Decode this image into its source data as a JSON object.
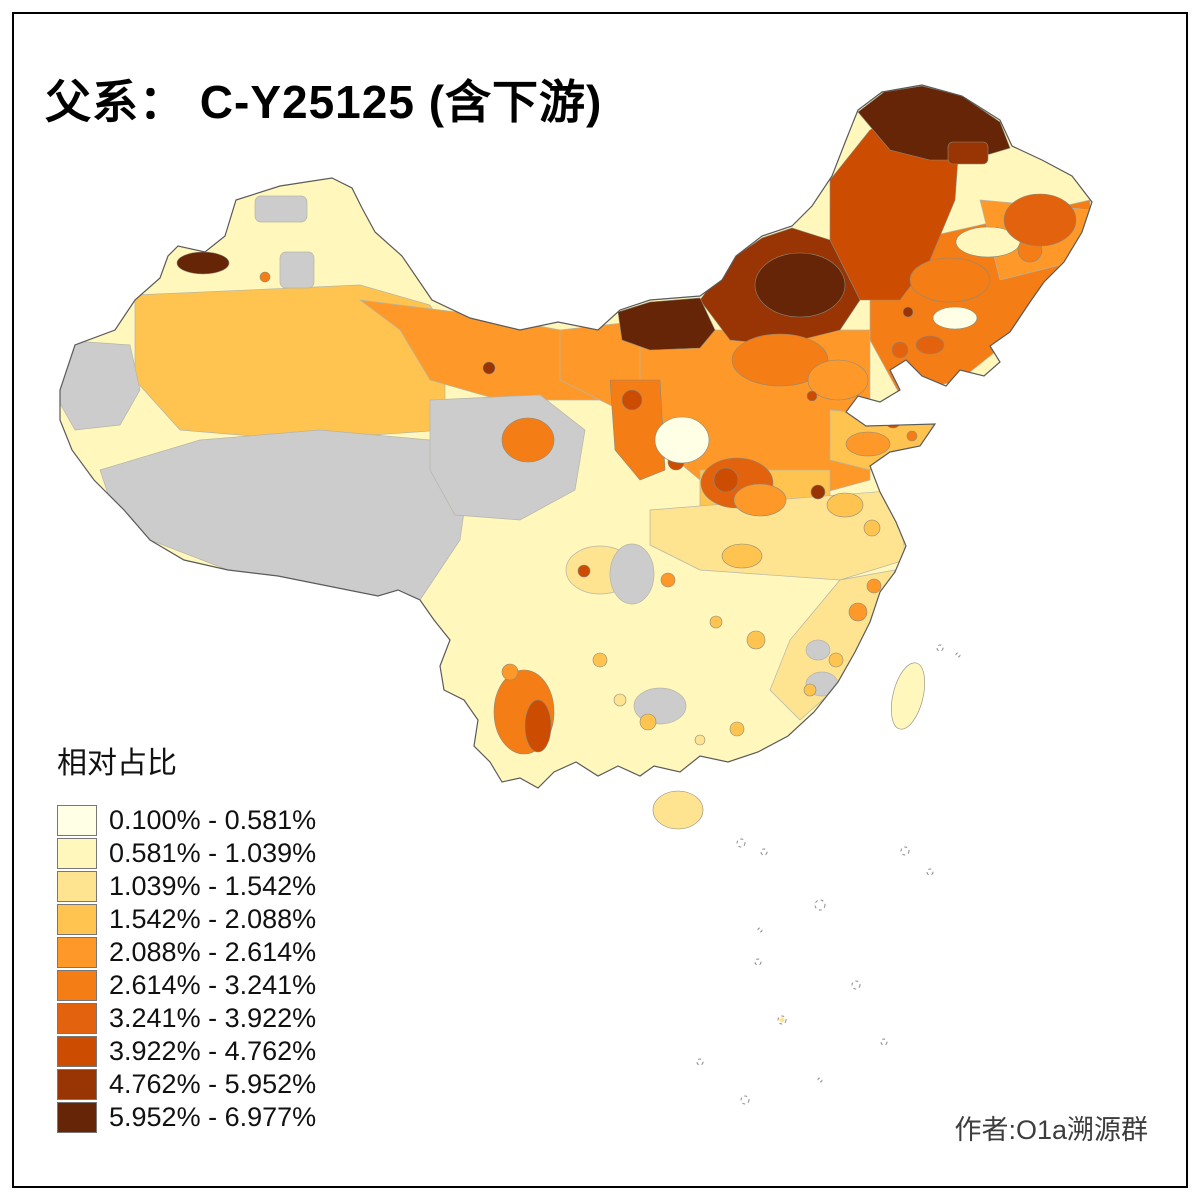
{
  "title": "父系： C-Y25125 (含下游)",
  "legend": {
    "title": "相对占比",
    "entries": [
      {
        "label": "0.100% - 0.581%",
        "color": "#FFFFE5"
      },
      {
        "label": "0.581% - 1.039%",
        "color": "#FFF7BC"
      },
      {
        "label": "1.039% - 1.542%",
        "color": "#FEE391"
      },
      {
        "label": "1.542% - 2.088%",
        "color": "#FEC44F"
      },
      {
        "label": "2.088% - 2.614%",
        "color": "#FE9929"
      },
      {
        "label": "2.614% - 3.241%",
        "color": "#F57D15"
      },
      {
        "label": "3.241% - 3.922%",
        "color": "#E2620E"
      },
      {
        "label": "3.922% - 4.762%",
        "color": "#CC4C02"
      },
      {
        "label": "4.762% - 5.952%",
        "color": "#993404"
      },
      {
        "label": "5.952% - 6.977%",
        "color": "#662506"
      }
    ],
    "no_data_color": "#CCCCCC"
  },
  "map": {
    "region": "China",
    "type": "choropleth",
    "value_name": "相对占比",
    "haplogroup": "C-Y25125"
  },
  "credit": "作者:O1a溯源群"
}
